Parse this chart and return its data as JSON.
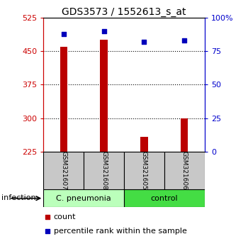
{
  "title": "GDS3573 / 1552613_s_at",
  "samples": [
    "GSM321607",
    "GSM321608",
    "GSM321605",
    "GSM321606"
  ],
  "counts": [
    460,
    476,
    258,
    300
  ],
  "percentiles": [
    88,
    90,
    82,
    83
  ],
  "ylim_left": [
    225,
    525
  ],
  "ylim_right": [
    0,
    100
  ],
  "yticks_left": [
    225,
    300,
    375,
    450,
    525
  ],
  "yticks_right": [
    0,
    25,
    50,
    75,
    100
  ],
  "ytick_labels_right": [
    "0",
    "25",
    "50",
    "75",
    "100%"
  ],
  "hlines": [
    300,
    375,
    450
  ],
  "bar_color": "#bb0000",
  "dot_color": "#0000bb",
  "groups": [
    {
      "label": "C. pneumonia",
      "indices": [
        0,
        1
      ],
      "color": "#bbffbb"
    },
    {
      "label": "control",
      "indices": [
        2,
        3
      ],
      "color": "#44dd44"
    }
  ],
  "sample_box_color": "#c8c8c8",
  "left_axis_color": "#cc0000",
  "right_axis_color": "#0000cc",
  "infection_label": "infection",
  "legend_count_label": "count",
  "legend_pct_label": "percentile rank within the sample",
  "title_fontsize": 10,
  "tick_fontsize": 8,
  "label_fontsize": 8,
  "bar_width": 0.18
}
